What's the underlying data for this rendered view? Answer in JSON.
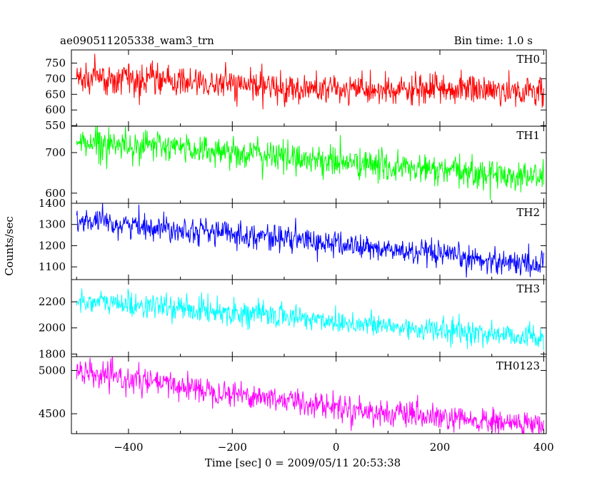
{
  "header": {
    "title": "ae090511205338_wam3_trn",
    "bin_time": "Bin time: 1.0 s"
  },
  "axes": {
    "ylabel": "Counts/sec",
    "xlabel": "Time [sec] 0 = 2009/05/11 20:53:38"
  },
  "chart_data": {
    "type": "line",
    "x_range": [
      -510,
      405
    ],
    "x_step": 1.0,
    "x_ticks": [
      -400,
      -200,
      0,
      200,
      400
    ],
    "x_ticklabels": [
      "−400",
      "−200",
      "0",
      "200",
      "400"
    ],
    "panels": [
      {
        "name": "TH0",
        "color": "#ff0000",
        "ylim": [
          548,
          792
        ],
        "yticks": [
          550,
          600,
          650,
          700,
          750
        ],
        "trend": [
          [
            -500,
            705
          ],
          [
            -300,
            690
          ],
          [
            -100,
            670
          ],
          [
            100,
            660
          ],
          [
            250,
            668
          ],
          [
            400,
            655
          ]
        ],
        "noise": 48
      },
      {
        "name": "TH1",
        "color": "#00ff00",
        "ylim": [
          575,
          765
        ],
        "yticks": [
          600,
          700
        ],
        "trend": [
          [
            -500,
            728
          ],
          [
            -300,
            712
          ],
          [
            -100,
            690
          ],
          [
            100,
            665
          ],
          [
            250,
            650
          ],
          [
            400,
            640
          ]
        ],
        "noise": 38
      },
      {
        "name": "TH2",
        "color": "#0000ff",
        "ylim": [
          1040,
          1400
        ],
        "yticks": [
          1100,
          1200,
          1300,
          1400
        ],
        "trend": [
          [
            -500,
            1315
          ],
          [
            -300,
            1280
          ],
          [
            -100,
            1235
          ],
          [
            100,
            1180
          ],
          [
            250,
            1140
          ],
          [
            400,
            1110
          ]
        ],
        "noise": 60
      },
      {
        "name": "TH3",
        "color": "#00ffff",
        "ylim": [
          1780,
          2370
        ],
        "yticks": [
          1800,
          2000,
          2200
        ],
        "trend": [
          [
            -500,
            2210
          ],
          [
            -300,
            2150
          ],
          [
            -100,
            2090
          ],
          [
            100,
            2010
          ],
          [
            250,
            1965
          ],
          [
            400,
            1930
          ]
        ],
        "noise": 95
      },
      {
        "name": "TH0123",
        "color": "#ff00ff",
        "ylim": [
          4270,
          5160
        ],
        "yticks": [
          4500,
          5000
        ],
        "trend": [
          [
            -500,
            4970
          ],
          [
            -300,
            4820
          ],
          [
            -100,
            4660
          ],
          [
            100,
            4500
          ],
          [
            250,
            4420
          ],
          [
            400,
            4370
          ]
        ],
        "noise": 150
      }
    ]
  }
}
